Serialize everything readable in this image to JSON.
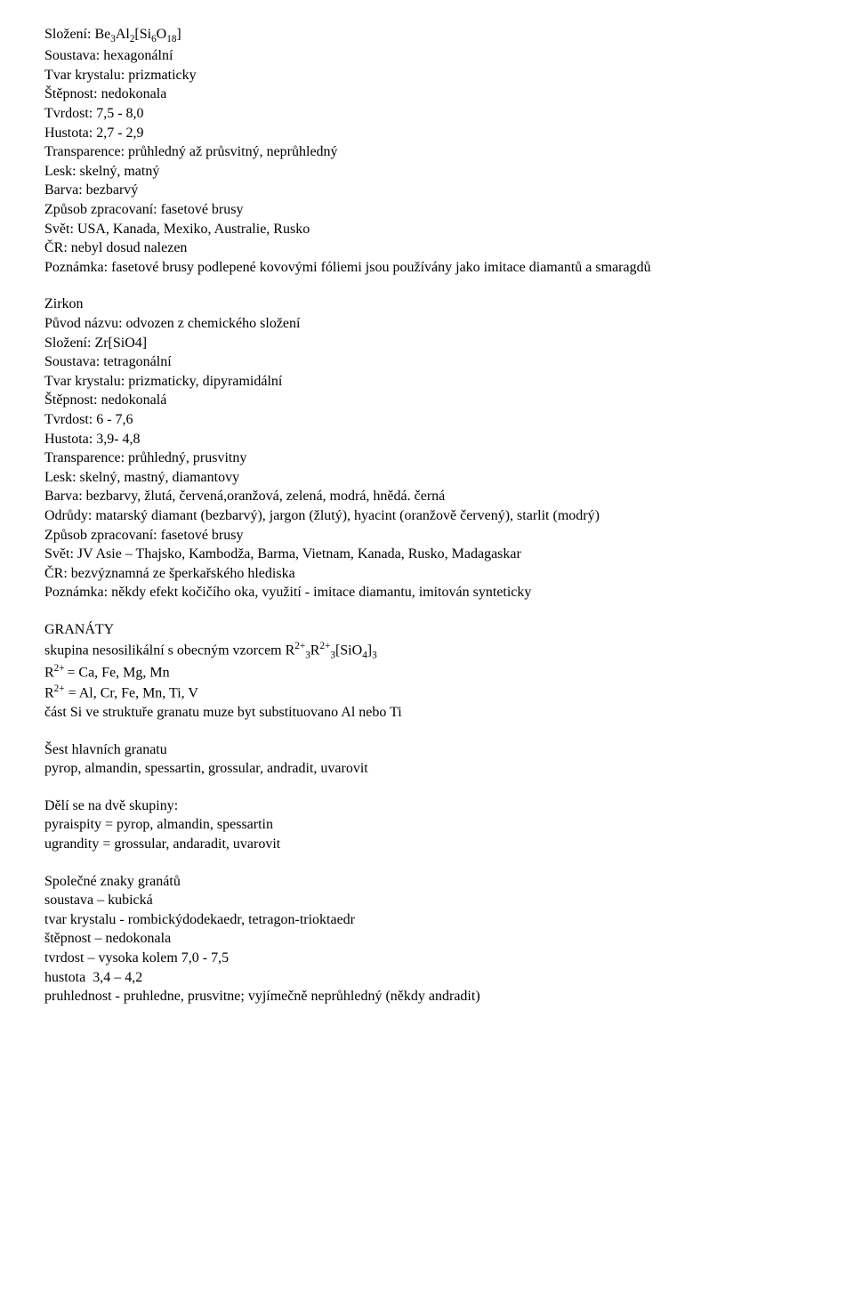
{
  "beryl": {
    "l1_pre": "Složení: Be",
    "l1_s1": "3",
    "l1_mid1": "Al",
    "l1_s2": "2",
    "l1_mid2": "[Si",
    "l1_s3": "6",
    "l1_mid3": "O",
    "l1_s4": "18",
    "l1_post": "]",
    "l2": "Soustava: hexagonální",
    "l3": "Tvar krystalu: prizmaticky",
    "l4": "Štěpnost: nedokonala",
    "l5": "Tvrdost: 7,5 - 8,0",
    "l6": "Hustota: 2,7 - 2,9",
    "l7": "Transparence: průhledný až průsvitný, neprůhledný",
    "l8": "Lesk: skelný, matný",
    "l9": "Barva: bezbarvý",
    "l10": "Způsob zpracovaní: fasetové brusy",
    "l11": "Svět: USA, Kanada, Mexiko, Australie, Rusko",
    "l12": "ČR: nebyl dosud nalezen",
    "l13": "Poznámka: fasetové brusy podlepené kovovými fóliemi jsou používány jako imitace diamantů a smaragdů"
  },
  "zirkon": {
    "title": "Zirkon",
    "l1": "Původ názvu: odvozen z chemického složení",
    "l2": "Složení: Zr[SiO4]",
    "l3": "Soustava: tetragonální",
    "l4": "Tvar krystalu: prizmaticky, dipyramidální",
    "l5": "Štěpnost: nedokonalá",
    "l6": "Tvrdost: 6 - 7,6",
    "l7": "Hustota: 3,9- 4,8",
    "l8": "Transparence: průhledný, prusvitny",
    "l9": "Lesk: skelný, mastný, diamantovy",
    "l10": "Barva: bezbarvy, žlutá, červená,oranžová, zelená, modrá, hnědá. černá",
    "l11": "Odrůdy: matarský diamant (bezbarvý), jargon (žlutý), hyacint (oranžově červený), starlit (modrý)",
    "l12": "Způsob zpracovaní: fasetové brusy",
    "l13": "Svět: JV Asie – Thajsko, Kambodža, Barma, Vietnam, Kanada, Rusko, Madagaskar",
    "l14": "ČR: bezvýznamná ze šperkařského hlediska",
    "l15": "Poznámka: někdy efekt kočičího oka, využití - imitace diamantu, imitován synteticky"
  },
  "granaty": {
    "title": "GRANÁTY",
    "l1_pre": "skupina nesosilikální s obecným vzorcem R",
    "l1_sup1": "2+",
    "l1_sub1": "3",
    "l1_mid1": "R",
    "l1_sup2": "2+",
    "l1_sub2": "3",
    "l1_mid2": "[SiO",
    "l1_sub3": "4",
    "l1_mid3": "]",
    "l1_sub4": "3",
    "l2_pre": "R",
    "l2_sup": "2+ ",
    "l2_post": "= Ca, Fe, Mg, Mn",
    "l3_pre": "R",
    "l3_sup": "2+",
    "l3_post": " = Al, Cr, Fe, Mn, Ti, V",
    "l4": "část Si ve struktuře granatu muze byt substituovano Al nebo Ti"
  },
  "sest": {
    "l1": "Šest hlavních granatu",
    "l2": "pyrop, almandin, spessartin, grossular, andradit, uvarovit"
  },
  "deli": {
    "l1": "Dělí se na dvě skupiny:",
    "l2": "pyraispity = pyrop, almandin, spessartin",
    "l3": "ugrandity = grossular, andaradit, uvarovit"
  },
  "spolecne": {
    "l1": "Společné znaky granátů",
    "l2": "soustava – kubická",
    "l3": "tvar krystalu - rombickýdodekaedr, tetragon-trioktaedr",
    "l4": "štěpnost – nedokonala",
    "l5": "tvrdost – vysoka kolem 7,0 - 7,5",
    "l6": "hustota  3,4 – 4,2",
    "l7": "pruhlednost - pruhledne, prusvitne; vyjímečně neprůhledný (někdy andradit)"
  }
}
